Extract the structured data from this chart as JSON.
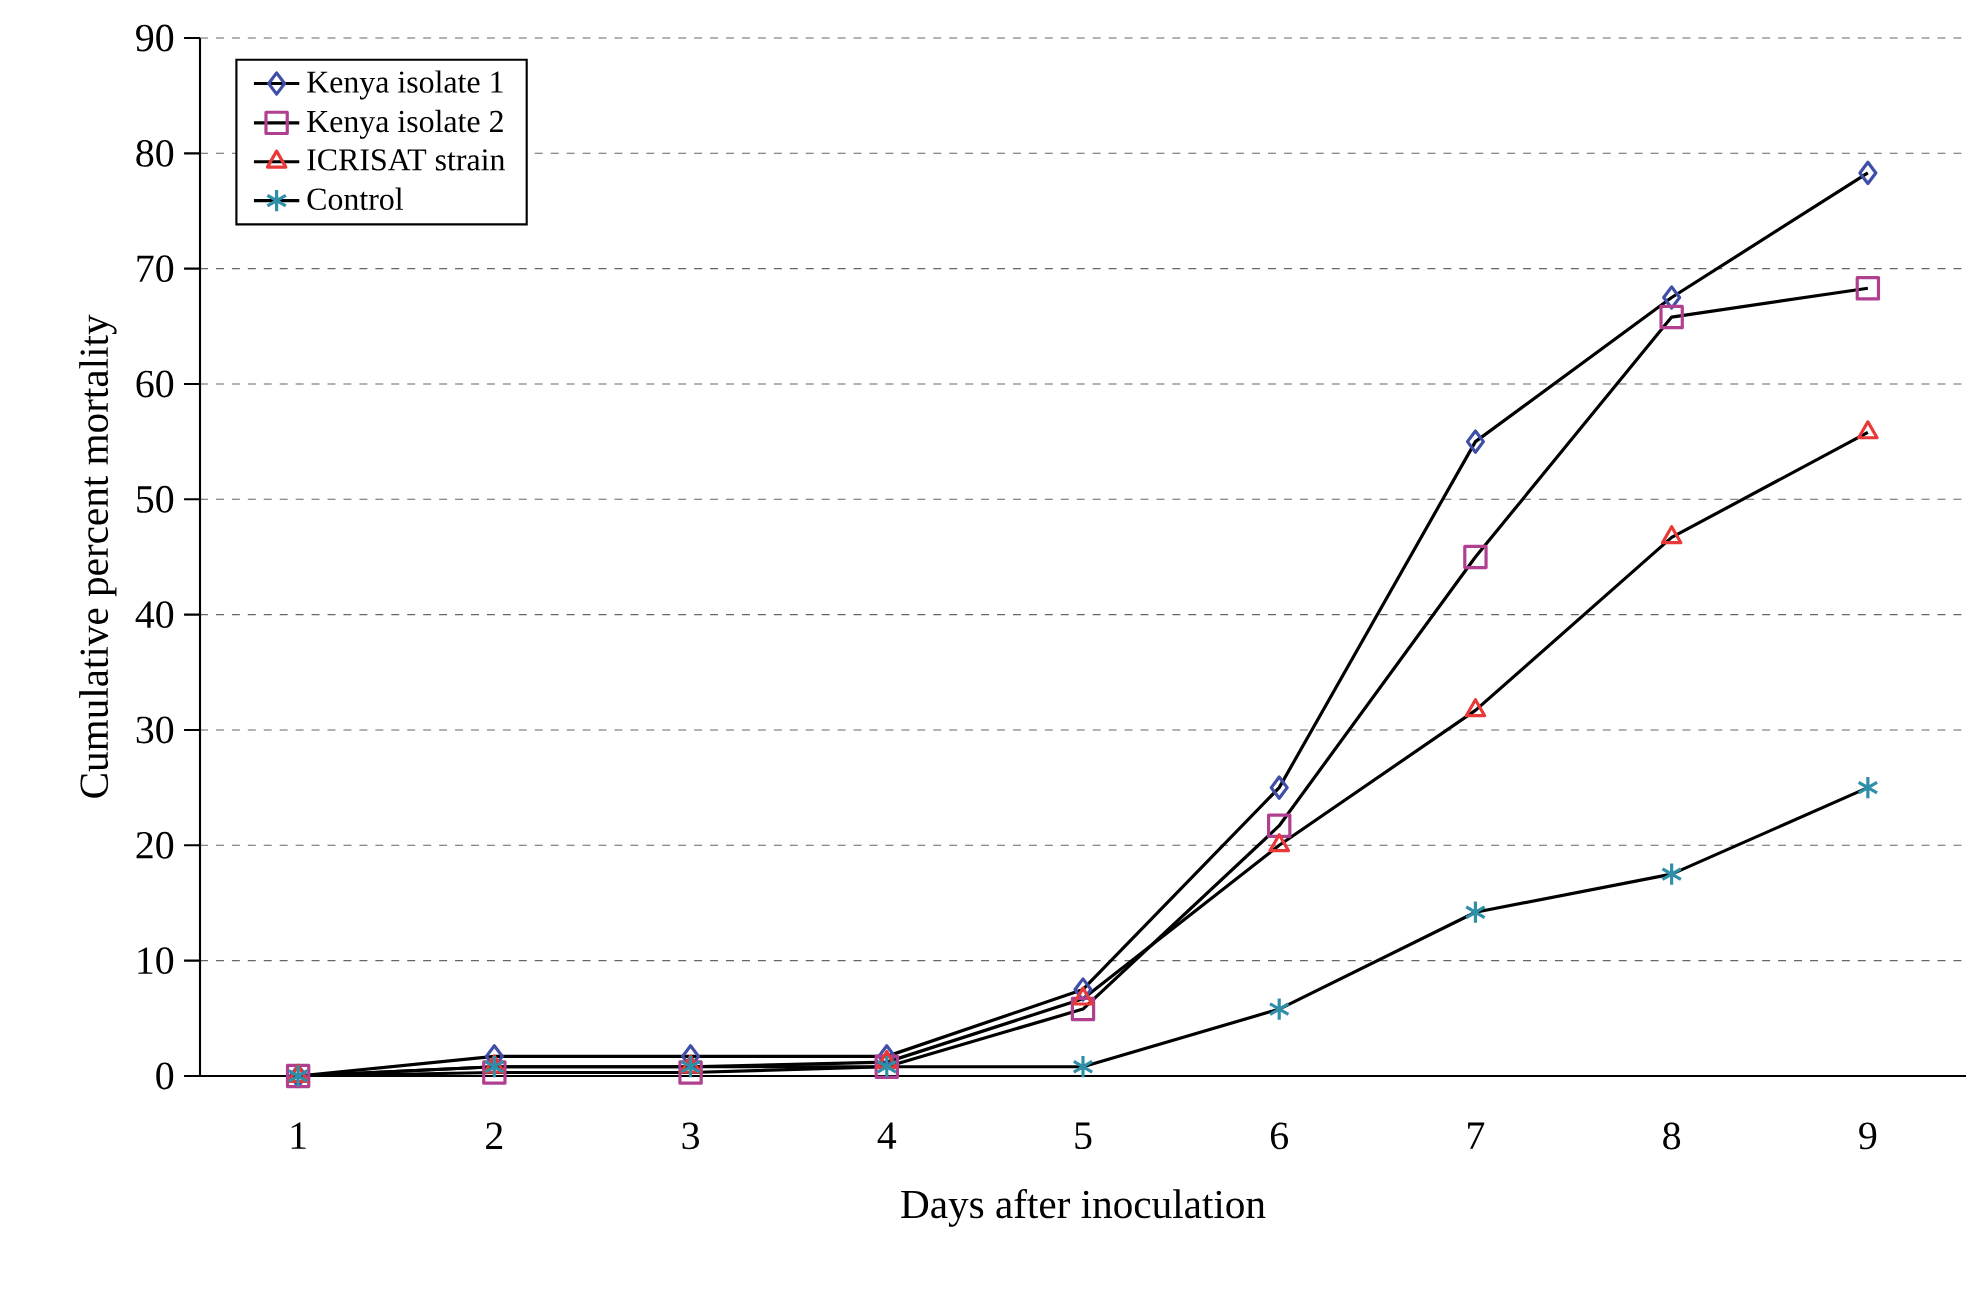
{
  "chart_data": {
    "type": "line",
    "xlabel": "Days after inoculation",
    "ylabel": "Cumulative percent mortality",
    "categories": [
      "1",
      "2",
      "3",
      "4",
      "5",
      "6",
      "7",
      "8",
      "9"
    ],
    "ylim": [
      0,
      90
    ],
    "yticks": [
      0,
      10,
      20,
      30,
      40,
      50,
      60,
      70,
      80,
      90
    ],
    "grid": "y",
    "legend": "top left",
    "series": [
      {
        "name": "Kenya isolate 1",
        "color": "#3f4fa8",
        "marker": "diamond",
        "values": [
          0,
          1.7,
          1.7,
          1.7,
          7.5,
          25,
          55,
          67.5,
          78.3
        ]
      },
      {
        "name": "Kenya isolate 2",
        "color": "#b0408f",
        "marker": "square",
        "values": [
          0,
          0.3,
          0.3,
          0.8,
          5.8,
          21.7,
          45,
          65.8,
          68.3
        ]
      },
      {
        "name": "ICRISAT strain",
        "color": "#e83838",
        "marker": "triangle",
        "values": [
          0,
          0.8,
          0.8,
          1.2,
          6.7,
          20,
          31.7,
          46.7,
          55.8
        ]
      },
      {
        "name": "Control",
        "color": "#2f8fa8",
        "marker": "cross",
        "values": [
          0,
          0.8,
          0.8,
          0.8,
          0.8,
          5.8,
          14.2,
          17.5,
          25
        ]
      }
    ]
  }
}
